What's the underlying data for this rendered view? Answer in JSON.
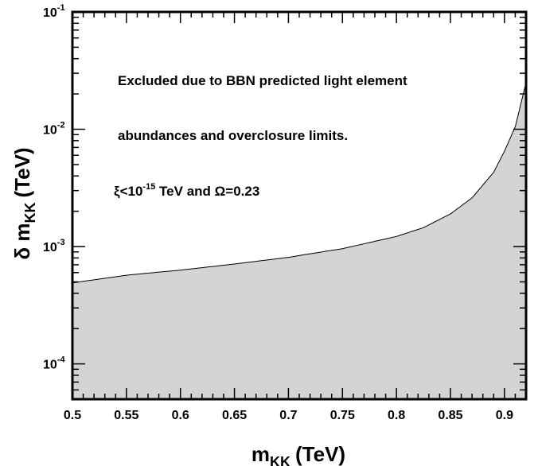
{
  "chart_data": {
    "type": "area",
    "title": "",
    "xlabel": {
      "main": "m",
      "sub": "KK",
      "unit": "(TeV)"
    },
    "ylabel": {
      "prefix": "δ m",
      "sub": "KK",
      "unit": "(TeV)"
    },
    "xlim": [
      0.5,
      0.92
    ],
    "ylim": [
      5e-05,
      0.1
    ],
    "yscale": "log",
    "x_tick_labels": [
      "0.5",
      "0.55",
      "0.6",
      "0.65",
      "0.7",
      "0.75",
      "0.8",
      "0.85",
      "0.9"
    ],
    "x_ticks": [
      0.5,
      0.55,
      0.6,
      0.65,
      0.7,
      0.75,
      0.8,
      0.85,
      0.9
    ],
    "y_ticks": [
      {
        "value": 0.1,
        "base": "10",
        "exp": "-1"
      },
      {
        "value": 0.01,
        "base": "10",
        "exp": "-2"
      },
      {
        "value": 0.001,
        "base": "10",
        "exp": "-3"
      },
      {
        "value": 0.0001,
        "base": "10",
        "exp": "-4"
      }
    ],
    "grid": false,
    "fill_color": "#d4d4d4",
    "boundary": {
      "x": [
        0.5,
        0.55,
        0.6,
        0.65,
        0.7,
        0.75,
        0.8,
        0.825,
        0.85,
        0.87,
        0.89,
        0.9,
        0.91,
        0.92
      ],
      "y": [
        0.00049,
        0.00057,
        0.00063,
        0.00071,
        0.00081,
        0.00096,
        0.00122,
        0.00145,
        0.0019,
        0.0026,
        0.0043,
        0.0065,
        0.0105,
        0.025
      ]
    },
    "annotations": {
      "line1": "Excluded due to BBN predicted light element",
      "line2": "abundances and overclosure limits.",
      "cond_xi": "ξ<10",
      "cond_exp": "-15",
      "cond_rest": " TeV and ",
      "cond_omega": "Ω=0.23"
    }
  }
}
